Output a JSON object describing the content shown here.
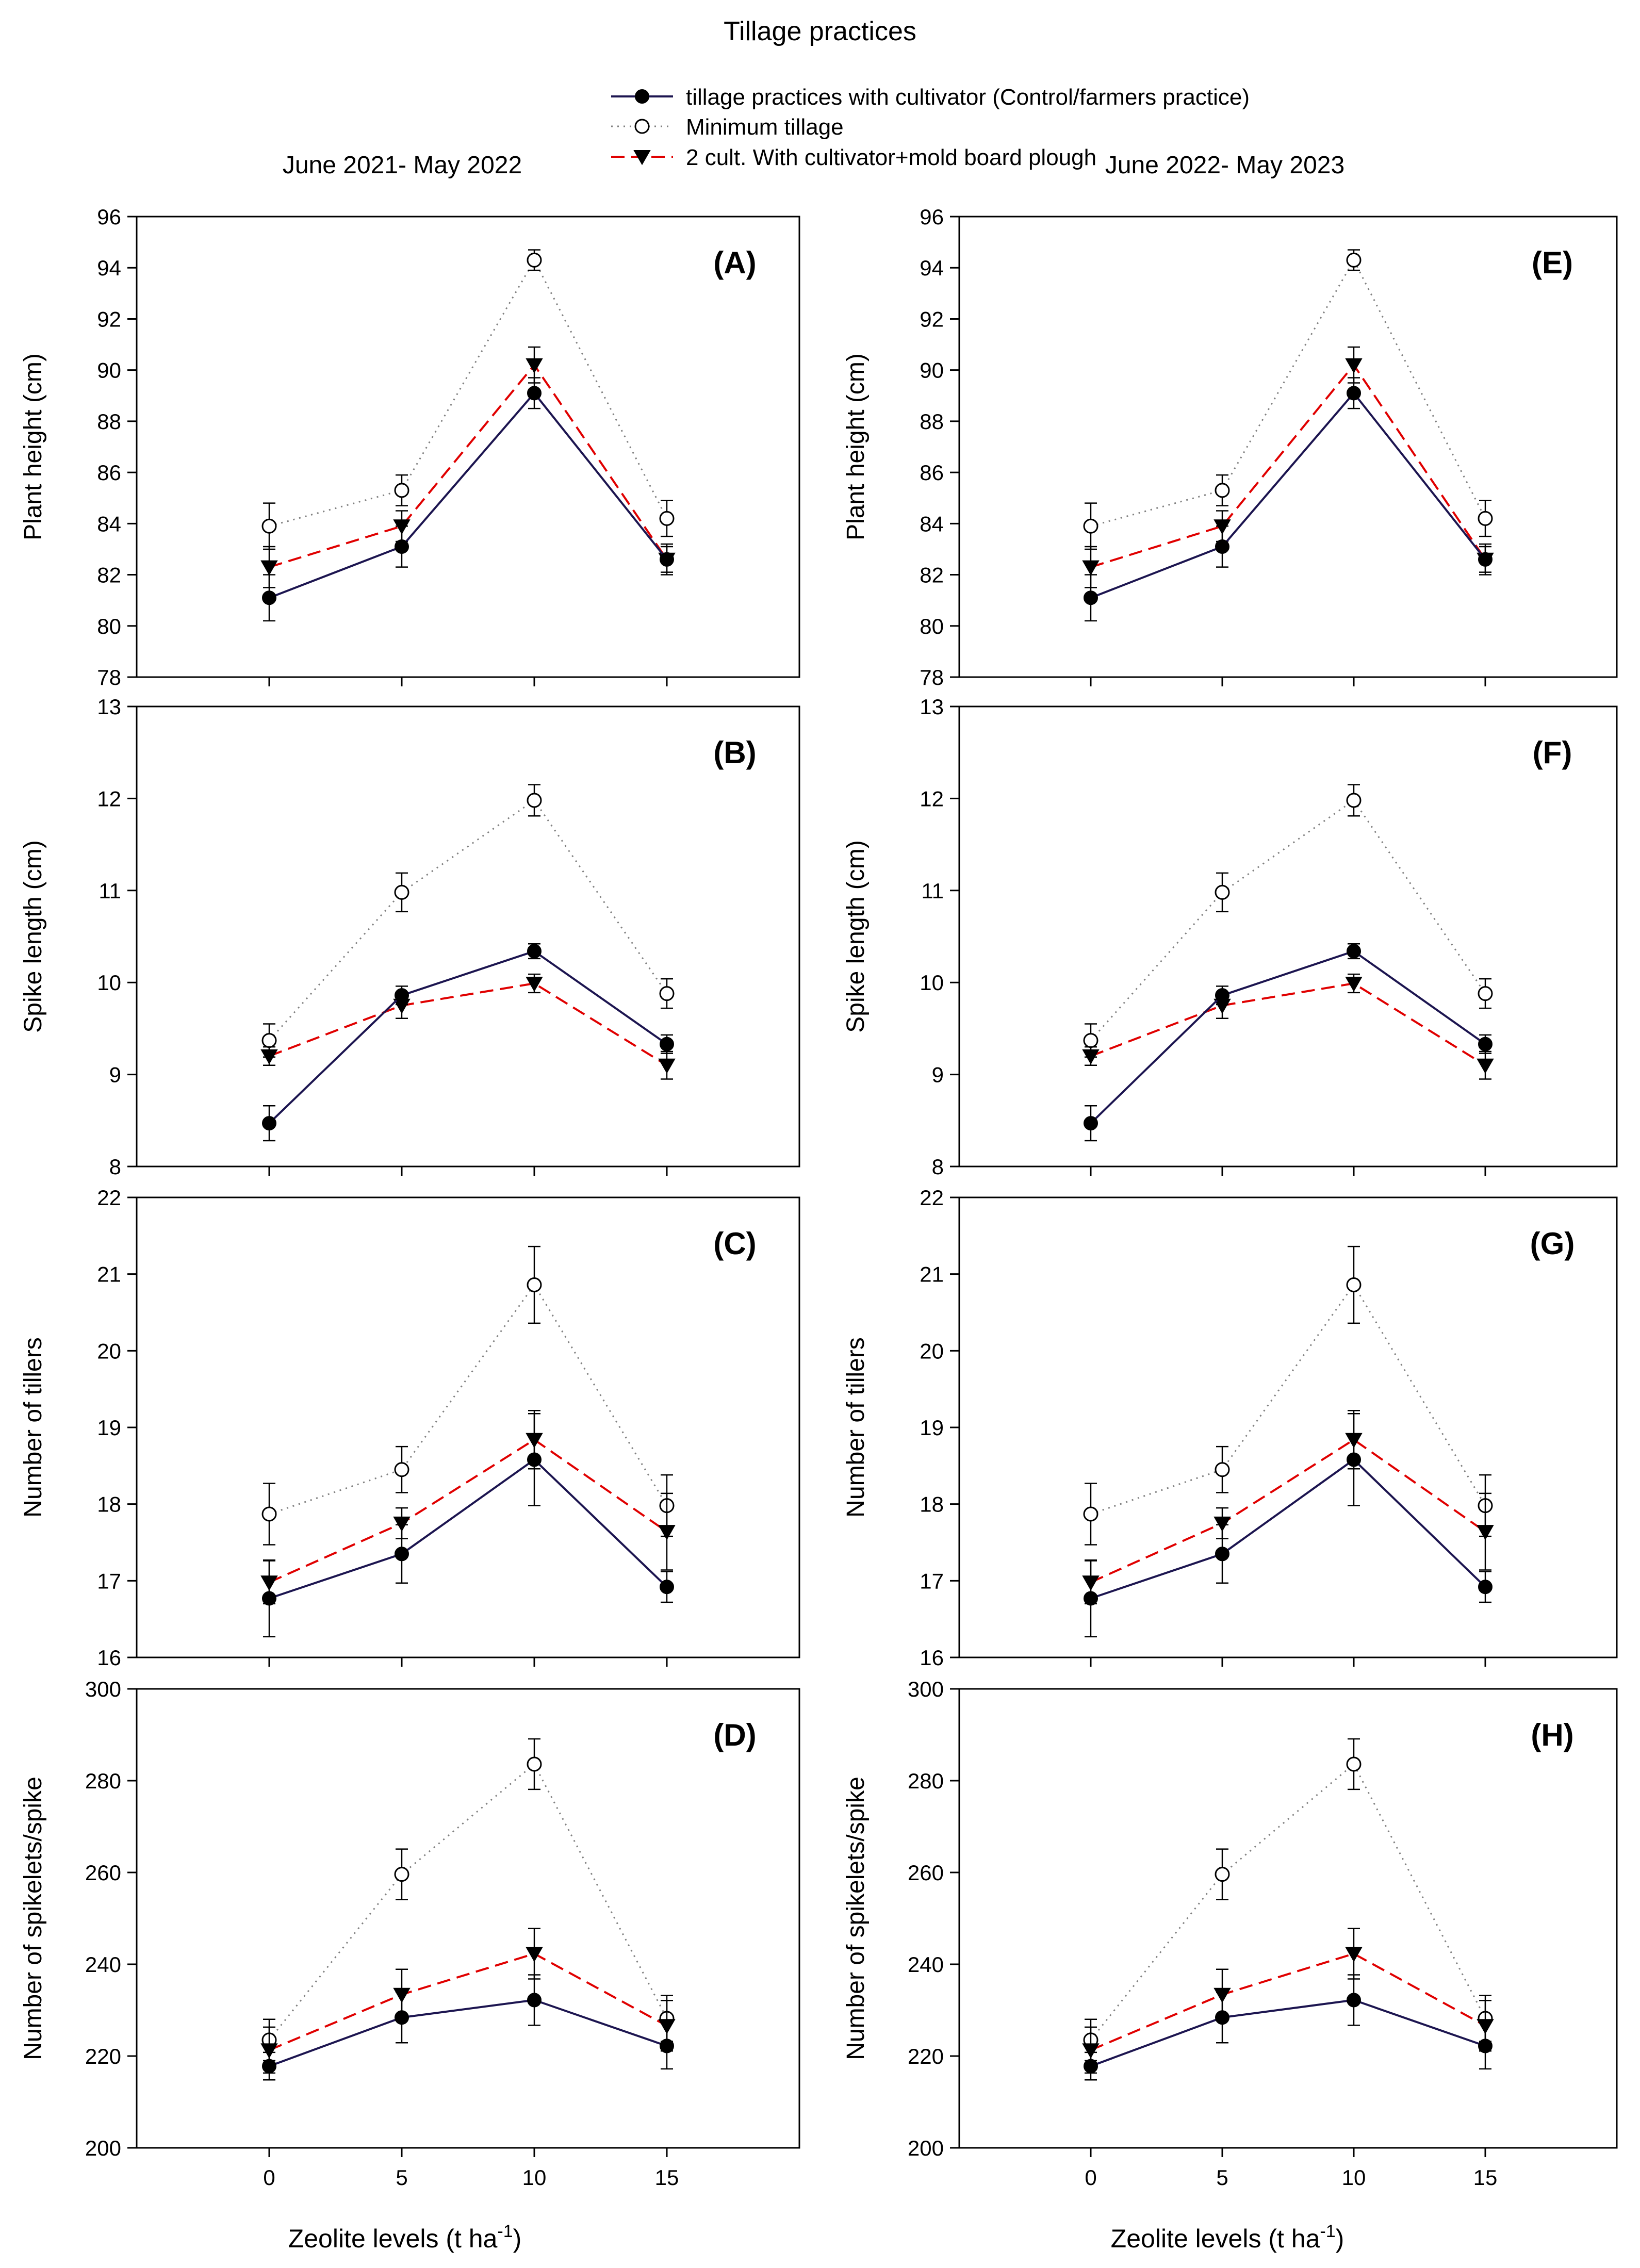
{
  "figure": {
    "title": "Tillage practices",
    "col_titles": [
      "June 2021- May 2022",
      "June 2022- May 2023"
    ],
    "xlabel": "Zeolite levels (t ha",
    "xlabel_sup": "-1",
    "xlabel_close": ")"
  },
  "legend": [
    {
      "label": "tillage practices with  cultivator (Control/farmers practice)",
      "color": "#1c1550",
      "dash": "solid",
      "marker": "filled-circle"
    },
    {
      "label": "Minimum tillage",
      "color": "#808080",
      "dash": "dotted",
      "marker": "open-circle"
    },
    {
      "label": "2 cult. With cultivator+mold board plough",
      "color": "#e00000",
      "dash": "dashed",
      "marker": "filled-triangle-down"
    }
  ],
  "chart_data": [
    {
      "type": "line",
      "panel": "(A)",
      "ylabel": "Plant height (cm)",
      "x": [
        0,
        5,
        10,
        15
      ],
      "xlim": [
        -5,
        20
      ],
      "xticks": [
        0,
        5,
        10,
        15
      ],
      "ylim": [
        78,
        96
      ],
      "yticks": [
        78,
        80,
        82,
        84,
        86,
        88,
        90,
        92,
        94,
        96
      ],
      "series": [
        {
          "name": "tillage practices with  cultivator (Control/farmers practice)",
          "values": [
            81.1,
            83.1,
            89.1,
            82.6
          ],
          "err": [
            0.9,
            0.8,
            0.6,
            0.5
          ]
        },
        {
          "name": "Minimum tillage",
          "values": [
            83.9,
            85.3,
            94.3,
            84.2
          ],
          "err": [
            0.9,
            0.6,
            0.4,
            0.7
          ]
        },
        {
          "name": "2 cult. With cultivator+mold board plough",
          "values": [
            82.3,
            83.9,
            90.2,
            82.6
          ],
          "err": [
            0.8,
            0.6,
            0.7,
            0.6
          ]
        }
      ]
    },
    {
      "type": "line",
      "panel": "(B)",
      "ylabel": "Spike length (cm)",
      "x": [
        0,
        5,
        10,
        15
      ],
      "xlim": [
        -5,
        20
      ],
      "xticks": [
        0,
        5,
        10,
        15
      ],
      "ylim": [
        8,
        13
      ],
      "yticks": [
        8,
        9,
        10,
        11,
        12,
        13
      ],
      "series": [
        {
          "name": "tillage practices with  cultivator (Control/farmers practice)",
          "values": [
            8.47,
            9.86,
            10.34,
            9.33
          ],
          "err": [
            0.19,
            0.1,
            0.08,
            0.1
          ]
        },
        {
          "name": "Minimum tillage",
          "values": [
            9.37,
            10.98,
            11.98,
            9.88
          ],
          "err": [
            0.18,
            0.21,
            0.17,
            0.16
          ]
        },
        {
          "name": "2 cult. With cultivator+mold board plough",
          "values": [
            9.2,
            9.75,
            9.99,
            9.1
          ],
          "err": [
            0.1,
            0.14,
            0.1,
            0.15
          ]
        }
      ]
    },
    {
      "type": "line",
      "panel": "(C)",
      "ylabel": "Number of tillers",
      "x": [
        0,
        5,
        10,
        15
      ],
      "xlim": [
        -5,
        20
      ],
      "xticks": [
        0,
        5,
        10,
        15
      ],
      "ylim": [
        16,
        22
      ],
      "yticks": [
        16,
        17,
        18,
        19,
        20,
        21,
        22
      ],
      "series": [
        {
          "name": "tillage practices with  cultivator (Control/farmers practice)",
          "values": [
            16.77,
            17.35,
            18.58,
            16.92
          ],
          "err": [
            0.5,
            0.38,
            0.6,
            0.2
          ]
        },
        {
          "name": "Minimum tillage",
          "values": [
            17.87,
            18.45,
            20.86,
            17.98
          ],
          "err": [
            0.4,
            0.3,
            0.5,
            0.4
          ]
        },
        {
          "name": "2 cult. With cultivator+mold board plough",
          "values": [
            16.98,
            17.75,
            18.84,
            17.64
          ],
          "err": [
            0.28,
            0.2,
            0.38,
            0.5
          ]
        }
      ]
    },
    {
      "type": "line",
      "panel": "(D)",
      "ylabel": "Number of spikelets/spike",
      "x": [
        0,
        5,
        10,
        15
      ],
      "xlim": [
        -5,
        20
      ],
      "xticks": [
        0,
        5,
        10,
        15
      ],
      "ylim": [
        200,
        300
      ],
      "yticks": [
        200,
        220,
        240,
        260,
        280,
        300
      ],
      "series": [
        {
          "name": "tillage practices with  cultivator (Control/farmers practice)",
          "values": [
            217.8,
            228.4,
            232.2,
            222.2
          ],
          "err": [
            3,
            5.5,
            5.5,
            5
          ]
        },
        {
          "name": "Minimum tillage",
          "values": [
            223.5,
            259.6,
            283.6,
            228.2
          ],
          "err": [
            4.5,
            5.5,
            5.5,
            5
          ]
        },
        {
          "name": "2 cult. With cultivator+mold board plough",
          "values": [
            221.3,
            233.4,
            242.3,
            226.6
          ],
          "err": [
            5,
            5.5,
            5.5,
            5.5
          ]
        }
      ]
    },
    {
      "type": "line",
      "panel": "(E)",
      "ylabel": "Plant height (cm)",
      "x": [
        0,
        5,
        10,
        15
      ],
      "xlim": [
        -5,
        20
      ],
      "xticks": [
        0,
        5,
        10,
        15
      ],
      "ylim": [
        78,
        96
      ],
      "yticks": [
        78,
        80,
        82,
        84,
        86,
        88,
        90,
        92,
        94,
        96
      ],
      "series": [
        {
          "name": "tillage practices with  cultivator (Control/farmers practice)",
          "values": [
            81.1,
            83.1,
            89.1,
            82.6
          ],
          "err": [
            0.9,
            0.8,
            0.6,
            0.5
          ]
        },
        {
          "name": "Minimum tillage",
          "values": [
            83.9,
            85.3,
            94.3,
            84.2
          ],
          "err": [
            0.9,
            0.6,
            0.4,
            0.7
          ]
        },
        {
          "name": "2 cult. With cultivator+mold board plough",
          "values": [
            82.3,
            83.9,
            90.2,
            82.6
          ],
          "err": [
            0.8,
            0.6,
            0.7,
            0.6
          ]
        }
      ]
    },
    {
      "type": "line",
      "panel": "(F)",
      "ylabel": "Spike length (cm)",
      "x": [
        0,
        5,
        10,
        15
      ],
      "xlim": [
        -5,
        20
      ],
      "xticks": [
        0,
        5,
        10,
        15
      ],
      "ylim": [
        8,
        13
      ],
      "yticks": [
        8,
        9,
        10,
        11,
        12,
        13
      ],
      "series": [
        {
          "name": "tillage practices with  cultivator (Control/farmers practice)",
          "values": [
            8.47,
            9.86,
            10.34,
            9.33
          ],
          "err": [
            0.19,
            0.1,
            0.08,
            0.1
          ]
        },
        {
          "name": "Minimum tillage",
          "values": [
            9.37,
            10.98,
            11.98,
            9.88
          ],
          "err": [
            0.18,
            0.21,
            0.17,
            0.16
          ]
        },
        {
          "name": "2 cult. With cultivator+mold board plough",
          "values": [
            9.2,
            9.75,
            9.99,
            9.1
          ],
          "err": [
            0.1,
            0.14,
            0.1,
            0.15
          ]
        }
      ]
    },
    {
      "type": "line",
      "panel": "(G)",
      "ylabel": "Number of tillers",
      "x": [
        0,
        5,
        10,
        15
      ],
      "xlim": [
        -5,
        20
      ],
      "xticks": [
        0,
        5,
        10,
        15
      ],
      "ylim": [
        16,
        22
      ],
      "yticks": [
        16,
        17,
        18,
        19,
        20,
        21,
        22
      ],
      "series": [
        {
          "name": "tillage practices with  cultivator (Control/farmers practice)",
          "values": [
            16.77,
            17.35,
            18.58,
            16.92
          ],
          "err": [
            0.5,
            0.38,
            0.6,
            0.2
          ]
        },
        {
          "name": "Minimum tillage",
          "values": [
            17.87,
            18.45,
            20.86,
            17.98
          ],
          "err": [
            0.4,
            0.3,
            0.5,
            0.4
          ]
        },
        {
          "name": "2 cult. With cultivator+mold board plough",
          "values": [
            16.98,
            17.75,
            18.84,
            17.64
          ],
          "err": [
            0.28,
            0.2,
            0.38,
            0.5
          ]
        }
      ]
    },
    {
      "type": "line",
      "panel": "(H)",
      "ylabel": "Number of spikelets/spike",
      "x": [
        0,
        5,
        10,
        15
      ],
      "xlim": [
        -5,
        20
      ],
      "xticks": [
        0,
        5,
        10,
        15
      ],
      "ylim": [
        200,
        300
      ],
      "yticks": [
        200,
        220,
        240,
        260,
        280,
        300
      ],
      "series": [
        {
          "name": "tillage practices with  cultivator (Control/farmers practice)",
          "values": [
            217.8,
            228.4,
            232.2,
            222.2
          ],
          "err": [
            3,
            5.5,
            5.5,
            5
          ]
        },
        {
          "name": "Minimum tillage",
          "values": [
            223.5,
            259.6,
            283.6,
            228.2
          ],
          "err": [
            4.5,
            5.5,
            5.5,
            5
          ]
        },
        {
          "name": "2 cult. With cultivator+mold board plough",
          "values": [
            221.3,
            233.4,
            242.3,
            226.6
          ],
          "err": [
            5,
            5.5,
            5.5,
            5.5
          ]
        }
      ]
    }
  ]
}
